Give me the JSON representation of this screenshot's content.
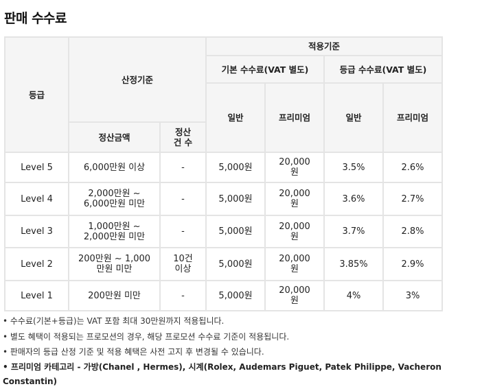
{
  "title": "판매 수수료",
  "headers": {
    "grade": "등급",
    "criteria": "산정기준",
    "applied": "적용기준",
    "base_fee": "기본 수수료(VAT 별도)",
    "grade_fee": "등급 수수료(VAT 별도)",
    "general": "일반",
    "premium": "프리미엄",
    "amount": "정산금액",
    "count_l1": "정산",
    "count_l2": "건 수"
  },
  "rows": [
    {
      "level": "Level 5",
      "amount_l1": "6,000만원 이상",
      "amount_l2": "",
      "count_l1": "-",
      "count_l2": "",
      "base_general": "5,000원",
      "base_premium_l1": "20,000",
      "base_premium_l2": "원",
      "grade_general": "3.5%",
      "grade_premium": "2.6%"
    },
    {
      "level": "Level 4",
      "amount_l1": "2,000만원 ~",
      "amount_l2": "6,000만원 미만",
      "count_l1": "-",
      "count_l2": "",
      "base_general": "5,000원",
      "base_premium_l1": "20,000",
      "base_premium_l2": "원",
      "grade_general": "3.6%",
      "grade_premium": "2.7%"
    },
    {
      "level": "Level 3",
      "amount_l1": "1,000만원 ~",
      "amount_l2": "2,000만원 미만",
      "count_l1": "-",
      "count_l2": "",
      "base_general": "5,000원",
      "base_premium_l1": "20,000",
      "base_premium_l2": "원",
      "grade_general": "3.7%",
      "grade_premium": "2.8%"
    },
    {
      "level": "Level 2",
      "amount_l1": "200만원 ~ 1,000",
      "amount_l2": "만원 미만",
      "count_l1": "10건",
      "count_l2": "이상",
      "base_general": "5,000원",
      "base_premium_l1": "20,000",
      "base_premium_l2": "원",
      "grade_general": "3.85%",
      "grade_premium": "2.9%"
    },
    {
      "level": "Level 1",
      "amount_l1": "200만원 미만",
      "amount_l2": "",
      "count_l1": "-",
      "count_l2": "",
      "base_general": "5,000원",
      "base_premium_l1": "20,000",
      "base_premium_l2": "원",
      "grade_general": "4%",
      "grade_premium": "3%"
    }
  ],
  "notes": [
    "• 수수료(기본+등급)는 VAT 포함 최대 30만원까지 적용됩니다.",
    "• 별도 혜택이 적용되는 프로모션의 경우, 해당 프로모션 수수료 기준이 적용됩니다.",
    "• 판매자의 등급 산정 기준 및 적용 혜택은 사전 고지 후 변경될 수 있습니다."
  ],
  "premium_note": "• 프리미엄 카테고리 - 가방(Chanel , Hermes), 시계(Rolex, Audemars Piguet, Patek Philippe, Vacheron Constantin)"
}
